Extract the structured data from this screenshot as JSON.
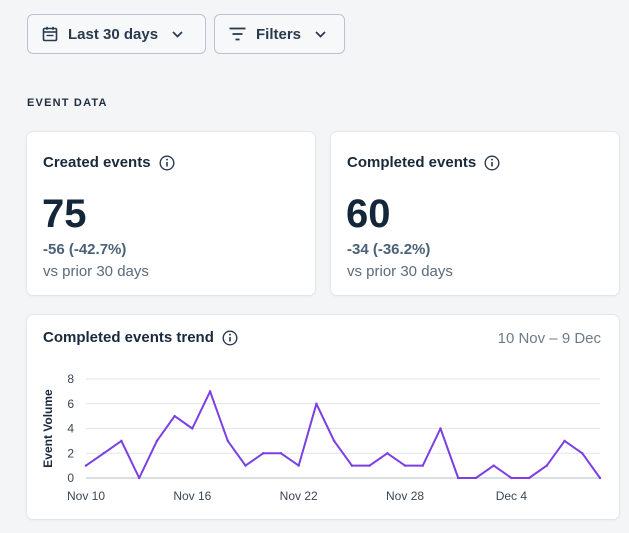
{
  "toolbar": {
    "date_range_label": "Last 30 days",
    "filters_label": "Filters"
  },
  "section": {
    "label": "EVENT DATA"
  },
  "cards": {
    "created": {
      "title": "Created events",
      "value": "75",
      "delta": "-56 (-42.7%)",
      "comparison": "vs prior 30 days"
    },
    "completed": {
      "title": "Completed events",
      "value": "60",
      "delta": "-34 (-36.2%)",
      "comparison": "vs prior 30 days"
    }
  },
  "trend": {
    "title": "Completed events trend",
    "range": "10 Nov – 9 Dec"
  },
  "colors": {
    "line": "#7b3fe4",
    "grid": "#e2e5e9",
    "axis": "#b9bfc6"
  },
  "chart_data": {
    "type": "line",
    "title": "Completed events trend",
    "ylabel": "Event Volume",
    "xlabel": "",
    "ylim": [
      0,
      8
    ],
    "yticks": [
      0,
      2,
      4,
      6,
      8
    ],
    "xtick_labels": [
      "Nov 10",
      "Nov 16",
      "Nov 22",
      "Nov 28",
      "Dec 4"
    ],
    "xtick_indices": [
      0,
      6,
      12,
      18,
      24
    ],
    "series": [
      {
        "name": "Completed events",
        "values": [
          1,
          2,
          3,
          0,
          3,
          5,
          4,
          7,
          3,
          1,
          2,
          2,
          1,
          6,
          3,
          1,
          1,
          2,
          1,
          1,
          4,
          0,
          0,
          1,
          0,
          0,
          1,
          3,
          2,
          0
        ]
      }
    ]
  }
}
